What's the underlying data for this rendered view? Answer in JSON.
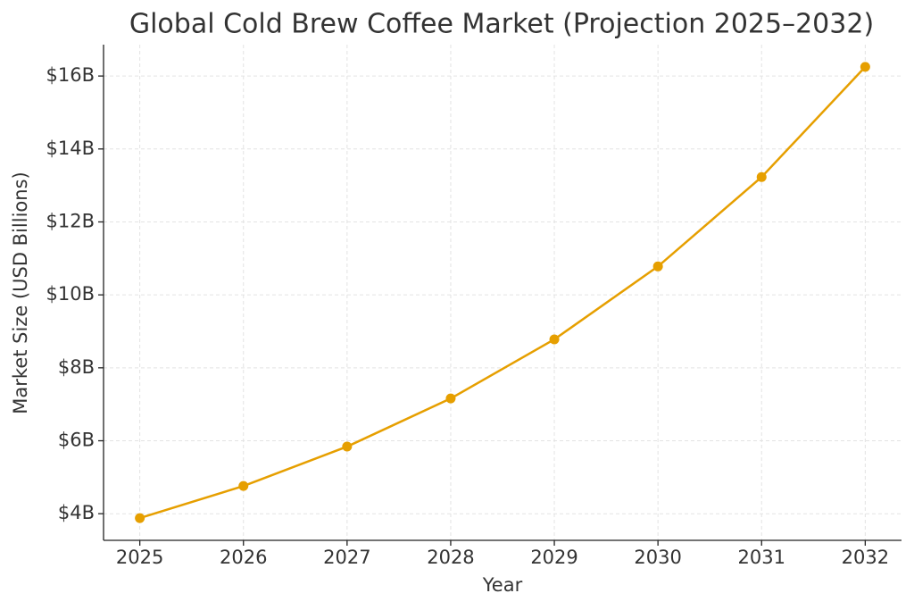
{
  "chart_data": {
    "type": "line",
    "title": "Global Cold Brew Coffee Market (Projection 2025–2032)",
    "x_label": "Year",
    "y_label": "Market Size (USD Billions)",
    "x": [
      2025,
      2026,
      2027,
      2028,
      2029,
      2030,
      2031,
      2032
    ],
    "series": [
      {
        "name": "Market Size",
        "color": "#e69f00",
        "values": [
          3.88,
          4.76,
          5.84,
          7.16,
          8.78,
          10.78,
          13.23,
          16.25
        ]
      }
    ],
    "xlim": [
      2024.65,
      2032.35
    ],
    "ylim": [
      3.27,
      16.86
    ],
    "xticks": [
      2025,
      2026,
      2027,
      2028,
      2029,
      2030,
      2031,
      2032
    ],
    "yticks": [
      {
        "value": 4,
        "label": "$4B"
      },
      {
        "value": 6,
        "label": "$6B"
      },
      {
        "value": 8,
        "label": "$8B"
      },
      {
        "value": 10,
        "label": "$10B"
      },
      {
        "value": 12,
        "label": "$12B"
      },
      {
        "value": 14,
        "label": "$14B"
      },
      {
        "value": 16,
        "label": "$16B"
      }
    ],
    "grid": true,
    "markers": true
  }
}
